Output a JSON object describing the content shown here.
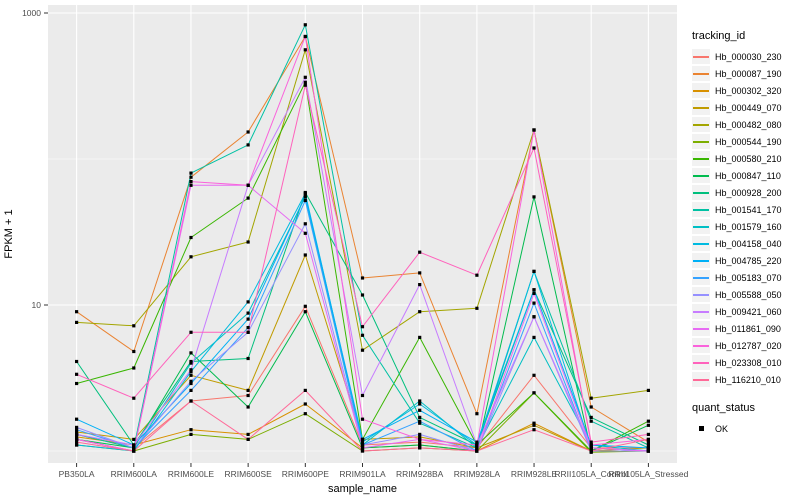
{
  "y_axis": {
    "label": "FPKM + 1",
    "ticks": [
      {
        "label": "1000",
        "value": 1000
      },
      {
        "label": "10",
        "value": 10
      }
    ]
  },
  "x_axis": {
    "label": "sample_name",
    "categories": [
      "PB350LA",
      "RRIM600LA",
      "RRIM600LE",
      "RRIM600SE",
      "RRIM600PE",
      "RRIM901LA",
      "RRIM928BA",
      "RRIM928LA",
      "RRIM928LE",
      "RRII105LA_Control",
      "RRII105LA_Stressed"
    ]
  },
  "legends": {
    "tracking": {
      "title": "tracking_id"
    },
    "quant": {
      "title": "quant_status",
      "items": [
        {
          "label": "OK",
          "marker": "black-square"
        }
      ]
    }
  },
  "chart_data": {
    "type": "line",
    "y_scale": "log10",
    "ylim": [
      0.85,
      1250
    ],
    "y_major_breaks": [
      10,
      1000
    ],
    "y_minor_breaks": [
      1,
      100
    ],
    "grid": "on",
    "panel_bg": "#EBEBEB",
    "grid_color": "#FFFFFF",
    "point_color": "#000000",
    "tick_label_color": "#4D4D4D",
    "legend_position": "right",
    "categories": [
      "PB350LA",
      "RRIM600LA",
      "RRIM600LE",
      "RRIM600SE",
      "RRIM600PE",
      "RRIM901LA",
      "RRIM928BA",
      "RRIM928LA",
      "RRIM928LE",
      "RRII105LA_Control",
      "RRII105LA_Stressed"
    ],
    "series": [
      {
        "name": "Hb_000030_230",
        "color": "#F8766D",
        "values": [
          1.3,
          1.05,
          2.2,
          2.4,
          9.8,
          1.1,
          1.15,
          1.05,
          3.3,
          1.05,
          1.05
        ]
      },
      {
        "name": "Hb_000087_190",
        "color": "#EA8331",
        "values": [
          9.0,
          4.8,
          75,
          153,
          690,
          15.3,
          16.6,
          1.8,
          158,
          2.0,
          1.15
        ]
      },
      {
        "name": "Hb_000302_320",
        "color": "#D89000",
        "values": [
          1.25,
          1.1,
          1.4,
          1.3,
          2.1,
          1.05,
          1.1,
          1.0,
          1.55,
          1.0,
          1.0
        ]
      },
      {
        "name": "Hb_000449_070",
        "color": "#C09B00",
        "values": [
          1.35,
          1.2,
          3.3,
          2.6,
          22,
          1.2,
          1.25,
          1.05,
          1.5,
          1.0,
          1.05
        ]
      },
      {
        "name": "Hb_000482_080",
        "color": "#A3A500",
        "values": [
          7.6,
          7.2,
          21.4,
          27,
          560,
          4.9,
          9.0,
          9.5,
          158,
          2.3,
          2.6
        ]
      },
      {
        "name": "Hb_000544_190",
        "color": "#7CAE00",
        "values": [
          1.1,
          1.0,
          1.3,
          1.2,
          1.8,
          1.0,
          1.05,
          1.0,
          2.5,
          0.98,
          1.0
        ]
      },
      {
        "name": "Hb_000580_210",
        "color": "#39B600",
        "values": [
          2.9,
          3.7,
          29,
          54,
          335,
          1.2,
          6.0,
          1.1,
          2.5,
          1.0,
          1.6
        ]
      },
      {
        "name": "Hb_000847_110",
        "color": "#00BB4E",
        "values": [
          1.2,
          1.05,
          4.7,
          2.0,
          9.0,
          1.05,
          1.1,
          1.0,
          55,
          1.0,
          1.5
        ]
      },
      {
        "name": "Hb_000928_200",
        "color": "#00BF7D",
        "values": [
          4.1,
          1.1,
          4.1,
          4.3,
          59,
          11.7,
          1.7,
          1.1,
          12.7,
          1.7,
          1.1
        ]
      },
      {
        "name": "Hb_001541_170",
        "color": "#00C1A3",
        "values": [
          1.3,
          1.05,
          80,
          125,
          830,
          6.2,
          1.55,
          1.05,
          17,
          1.6,
          1.05
        ]
      },
      {
        "name": "Hb_001579_160",
        "color": "#00BFC4",
        "values": [
          1.2,
          1.0,
          4.0,
          8.8,
          55,
          1.1,
          2.2,
          1.05,
          6.0,
          1.1,
          1.0
        ]
      },
      {
        "name": "Hb_004158_040",
        "color": "#00BAE0",
        "values": [
          1.1,
          1.0,
          3.5,
          10.5,
          58,
          1.15,
          2.1,
          1.1,
          17,
          1.05,
          1.0
        ]
      },
      {
        "name": "Hb_004785_220",
        "color": "#00B0F6",
        "values": [
          1.65,
          1.1,
          2.9,
          8.0,
          56,
          1.2,
          1.9,
          1.15,
          12.7,
          1.1,
          1.05
        ]
      },
      {
        "name": "Hb_005183_070",
        "color": "#35A2FF",
        "values": [
          1.4,
          1.05,
          2.6,
          7.0,
          52,
          1.1,
          1.6,
          1.0,
          10.3,
          1.0,
          1.0
        ]
      },
      {
        "name": "Hb_005588_050",
        "color": "#9590FF",
        "values": [
          1.45,
          1.05,
          3.0,
          6.5,
          36,
          1.1,
          1.3,
          1.0,
          8.3,
          1.0,
          1.0
        ]
      },
      {
        "name": "Hb_009421_060",
        "color": "#C77CFF",
        "values": [
          1.3,
          1.1,
          3.6,
          66,
          363,
          2.4,
          13.8,
          1.1,
          8.3,
          1.05,
          1.0
        ]
      },
      {
        "name": "Hb_011861_090",
        "color": "#E76BF3",
        "values": [
          1.2,
          1.0,
          66,
          66,
          31,
          1.05,
          1.2,
          1.0,
          12.0,
          1.05,
          1.0
        ]
      },
      {
        "name": "Hb_012787_020",
        "color": "#FA62DB",
        "values": [
          1.2,
          1.0,
          70,
          66,
          690,
          1.65,
          1.2,
          1.1,
          158,
          1.1,
          1.2
        ]
      },
      {
        "name": "Hb_023308_010",
        "color": "#FF62BC",
        "values": [
          3.35,
          2.3,
          6.5,
          6.5,
          320,
          7.1,
          23,
          16,
          119,
          1.15,
          1.3
        ]
      },
      {
        "name": "Hb_116210_010",
        "color": "#FF6A98",
        "values": [
          1.15,
          1.0,
          2.2,
          1.2,
          2.6,
          1.0,
          1.05,
          1.0,
          1.4,
          1.0,
          1.2
        ]
      }
    ]
  }
}
